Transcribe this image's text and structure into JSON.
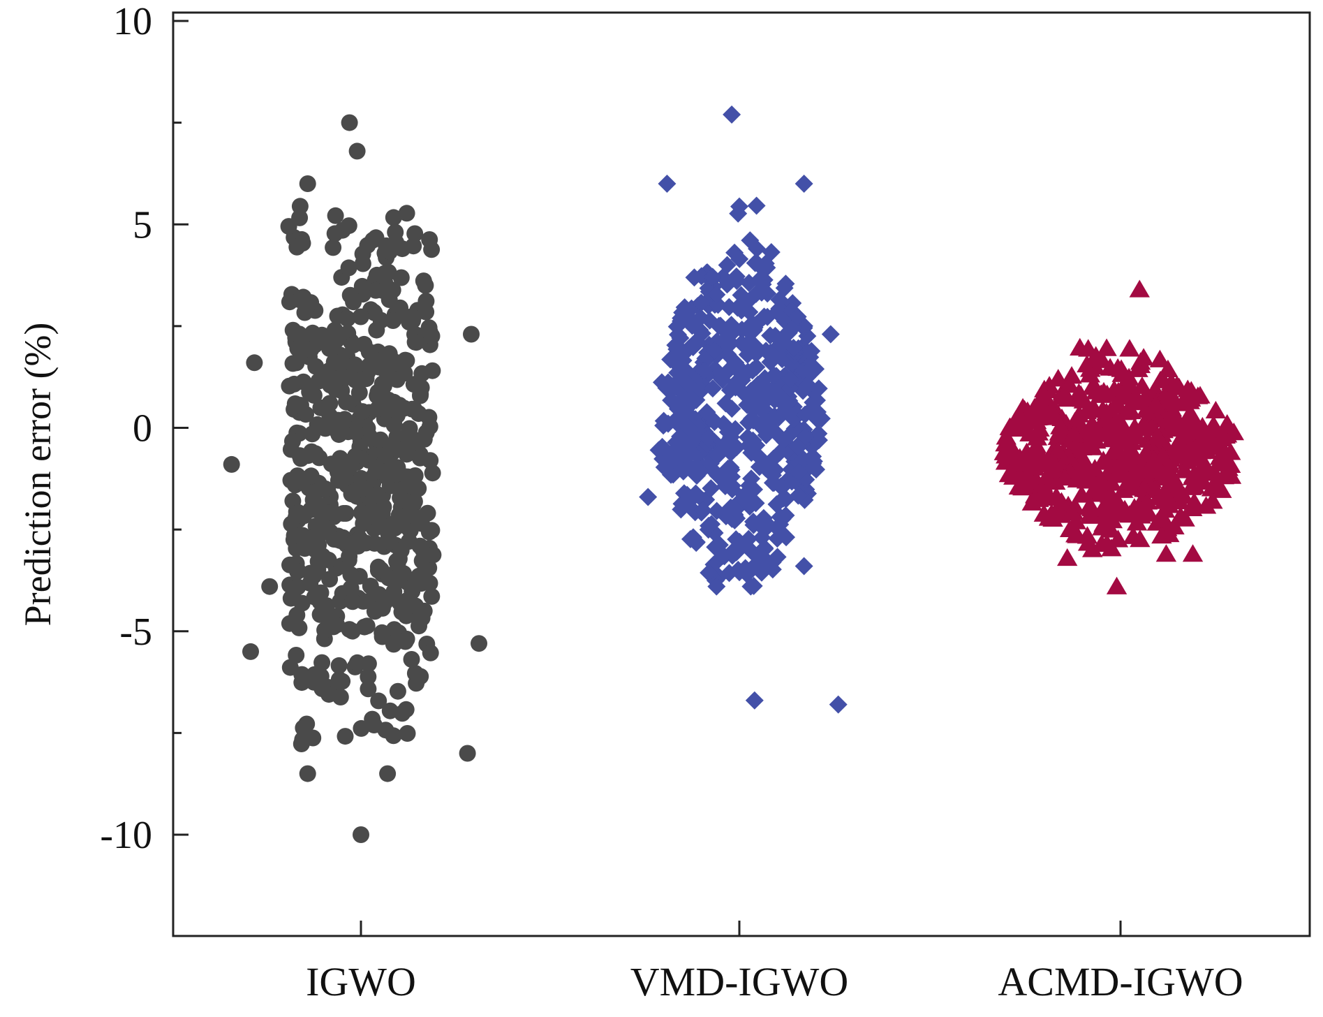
{
  "chart_data": {
    "type": "scatter",
    "title": "",
    "xlabel": "",
    "ylabel": "Prediction error (%)",
    "categories": [
      "IGWO",
      "VMD-IGWO",
      "ACMD-IGWO"
    ],
    "ylim": [
      -12.5,
      10
    ],
    "yticks": [
      10,
      5,
      0,
      -5,
      -10
    ],
    "ytick_labels": [
      "10",
      "5",
      "0",
      "-5",
      "-10"
    ],
    "grid": false,
    "series": [
      {
        "name": "IGWO",
        "marker": "circle",
        "color": "#4a4a4a",
        "center": 0,
        "n_points": 560,
        "distribution": {
          "mean": -1.2,
          "sd": 3.4,
          "min": -7.9,
          "max": 5.5,
          "jitter": 0.19
        },
        "outliers": [
          {
            "x": -0.03,
            "y": 7.5
          },
          {
            "x": -0.01,
            "y": 6.8
          },
          {
            "x": -0.14,
            "y": 6.0
          },
          {
            "x": 0.29,
            "y": 2.3
          },
          {
            "x": -0.28,
            "y": 1.6
          },
          {
            "x": -0.34,
            "y": -0.9
          },
          {
            "x": -0.24,
            "y": -3.9
          },
          {
            "x": -0.29,
            "y": -5.5
          },
          {
            "x": 0.31,
            "y": -5.3
          },
          {
            "x": 0.28,
            "y": -8.0
          },
          {
            "x": -0.14,
            "y": -8.5
          },
          {
            "x": 0.07,
            "y": -8.5
          },
          {
            "x": 0.0,
            "y": -10.0
          }
        ]
      },
      {
        "name": "VMD-IGWO",
        "marker": "diamond",
        "color": "#4350a8",
        "center": 1,
        "n_points": 520,
        "distribution": {
          "mean": 0.4,
          "sd": 2.1,
          "min": -3.9,
          "max": 5.6,
          "jitter": 0.22
        },
        "outliers": [
          {
            "x": -0.02,
            "y": 7.7
          },
          {
            "x": -0.19,
            "y": 6.0
          },
          {
            "x": 0.17,
            "y": 6.0
          },
          {
            "x": 0.24,
            "y": 2.3
          },
          {
            "x": -0.24,
            "y": -1.7
          },
          {
            "x": -0.06,
            "y": -3.9
          },
          {
            "x": 0.03,
            "y": -3.9
          },
          {
            "x": 0.17,
            "y": -3.4
          },
          {
            "x": 0.04,
            "y": -6.7
          },
          {
            "x": 0.26,
            "y": -6.8
          }
        ]
      },
      {
        "name": "ACMD-IGWO",
        "marker": "triangle",
        "color": "#a30a42",
        "center": 2,
        "n_points": 540,
        "distribution": {
          "mean": -0.6,
          "sd": 1.15,
          "min": -3.0,
          "max": 2.0,
          "jitter": 0.31
        },
        "outliers": [
          {
            "x": 0.05,
            "y": 3.4
          },
          {
            "x": -0.01,
            "y": -3.9
          },
          {
            "x": 0.12,
            "y": -3.1
          },
          {
            "x": 0.19,
            "y": -3.1
          },
          {
            "x": -0.14,
            "y": -3.2
          }
        ]
      }
    ]
  }
}
